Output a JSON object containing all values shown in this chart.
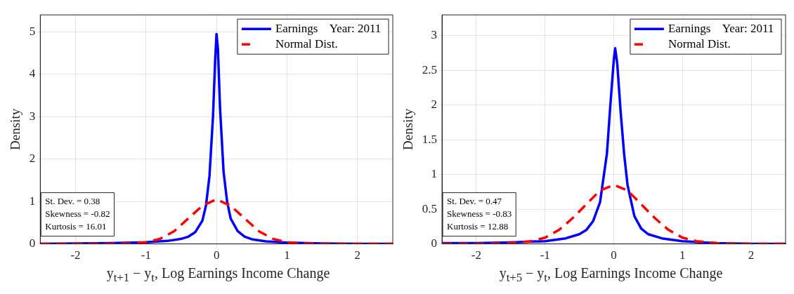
{
  "chart_data": [
    {
      "type": "line",
      "xlabel": "y$_{t+1}$ − y$_{t}$, Log Earnings Income Change",
      "ylabel": "Density",
      "xlim": [
        -2.5,
        2.5
      ],
      "xticks": [
        -2,
        -1,
        0,
        1,
        2
      ],
      "ylim": [
        0,
        5.4
      ],
      "yticks": [
        0,
        1,
        2,
        3,
        4,
        5
      ],
      "grid": true,
      "legend": "top right",
      "marker": "none",
      "annotations": [
        "St. Dev. = 0.38",
        "Skewness = -0.82",
        "Kurtosis = 16.01"
      ],
      "series": [
        {
          "name": "Earnings    Year: 2011",
          "color": "#0000ff",
          "line_style": "solid",
          "x": [
            -2.5,
            -2,
            -1.5,
            -1,
            -0.7,
            -0.5,
            -0.4,
            -0.3,
            -0.2,
            -0.15,
            -0.1,
            -0.05,
            -0.02,
            0,
            0.02,
            0.05,
            0.1,
            0.15,
            0.2,
            0.3,
            0.4,
            0.5,
            0.7,
            1,
            1.5,
            2,
            2.5
          ],
          "values": [
            0,
            0.01,
            0.02,
            0.04,
            0.07,
            0.12,
            0.17,
            0.28,
            0.55,
            0.9,
            1.6,
            3.0,
            4.3,
            4.95,
            4.6,
            3.2,
            1.7,
            1.0,
            0.6,
            0.3,
            0.17,
            0.11,
            0.06,
            0.03,
            0.01,
            0,
            0
          ]
        },
        {
          "name": "Normal Dist.",
          "color": "#ff0000",
          "line_style": "dashed",
          "x": [
            -2.5,
            -2,
            -1.5,
            -1.2,
            -1,
            -0.8,
            -0.6,
            -0.4,
            -0.2,
            0,
            0.2,
            0.4,
            0.6,
            0.8,
            1,
            1.2,
            1.5,
            2,
            2.5
          ],
          "values": [
            0,
            0,
            0,
            0.01,
            0.04,
            0.12,
            0.3,
            0.6,
            0.9,
            1.05,
            0.9,
            0.6,
            0.3,
            0.12,
            0.04,
            0.01,
            0,
            0,
            0
          ]
        }
      ]
    },
    {
      "type": "line",
      "xlabel": "y$_{t+5}$ − y$_{t}$, Log Earnings Income Change",
      "ylabel": "Density",
      "xlim": [
        -2.5,
        2.5
      ],
      "xticks": [
        -2,
        -1,
        0,
        1,
        2
      ],
      "ylim": [
        0,
        3.3
      ],
      "yticks": [
        0,
        0.5,
        1,
        1.5,
        2,
        2.5,
        3
      ],
      "grid": true,
      "legend": "top right",
      "marker": "none",
      "annotations": [
        "St. Dev. = 0.47",
        "Skewness = -0.83",
        "Kurtosis = 12.88"
      ],
      "series": [
        {
          "name": "Earnings    Year: 2011",
          "color": "#0000ff",
          "line_style": "solid",
          "x": [
            -2.5,
            -2,
            -1.5,
            -1,
            -0.7,
            -0.5,
            -0.4,
            -0.3,
            -0.2,
            -0.1,
            -0.05,
            0,
            0.02,
            0.05,
            0.1,
            0.15,
            0.2,
            0.3,
            0.4,
            0.5,
            0.7,
            1,
            1.5,
            2,
            2.5
          ],
          "values": [
            0.01,
            0.01,
            0.02,
            0.04,
            0.08,
            0.14,
            0.2,
            0.33,
            0.6,
            1.3,
            2.0,
            2.65,
            2.82,
            2.6,
            1.9,
            1.3,
            0.85,
            0.4,
            0.22,
            0.14,
            0.08,
            0.04,
            0.01,
            0,
            0
          ]
        },
        {
          "name": "Normal Dist.",
          "color": "#ff0000",
          "line_style": "dashed",
          "x": [
            -2.5,
            -2,
            -1.5,
            -1.2,
            -1,
            -0.8,
            -0.6,
            -0.4,
            -0.2,
            0,
            0.2,
            0.4,
            0.6,
            0.8,
            1,
            1.2,
            1.5,
            2,
            2.5
          ],
          "values": [
            0,
            0,
            0.01,
            0.04,
            0.09,
            0.2,
            0.37,
            0.57,
            0.77,
            0.85,
            0.77,
            0.57,
            0.37,
            0.2,
            0.09,
            0.04,
            0.01,
            0,
            0
          ]
        }
      ]
    }
  ]
}
